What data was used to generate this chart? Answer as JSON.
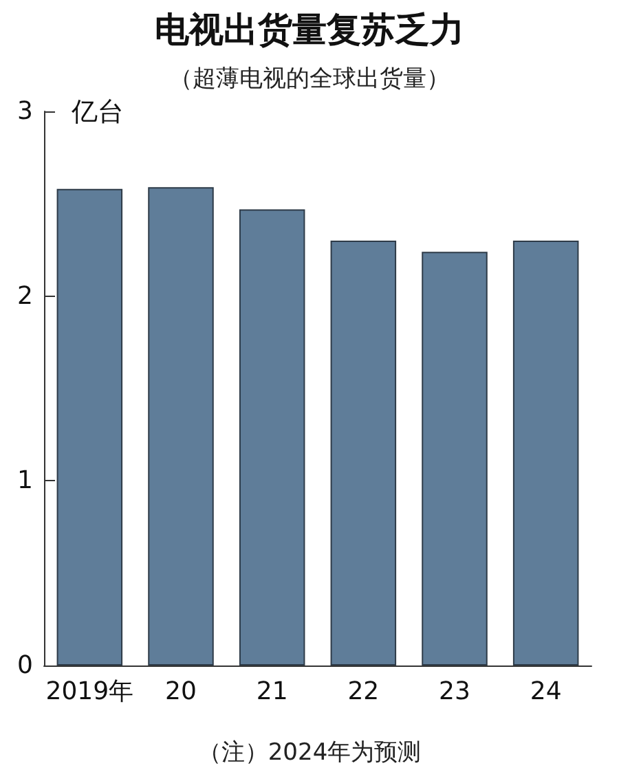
{
  "chart_data": {
    "type": "bar",
    "title": "电视出货量复苏乏力",
    "subtitle": "（超薄电视的全球出货量）",
    "ylabel": "亿台",
    "categories": [
      "2019年",
      "20",
      "21",
      "22",
      "23",
      "24"
    ],
    "values": [
      2.58,
      2.59,
      2.47,
      2.3,
      2.24,
      2.3
    ],
    "color": "#5f7d99",
    "ylim": [
      0,
      3
    ],
    "yticks": [
      0,
      1,
      2,
      3
    ],
    "grid": false,
    "annotations": [
      "（注）2024年为预测"
    ]
  }
}
